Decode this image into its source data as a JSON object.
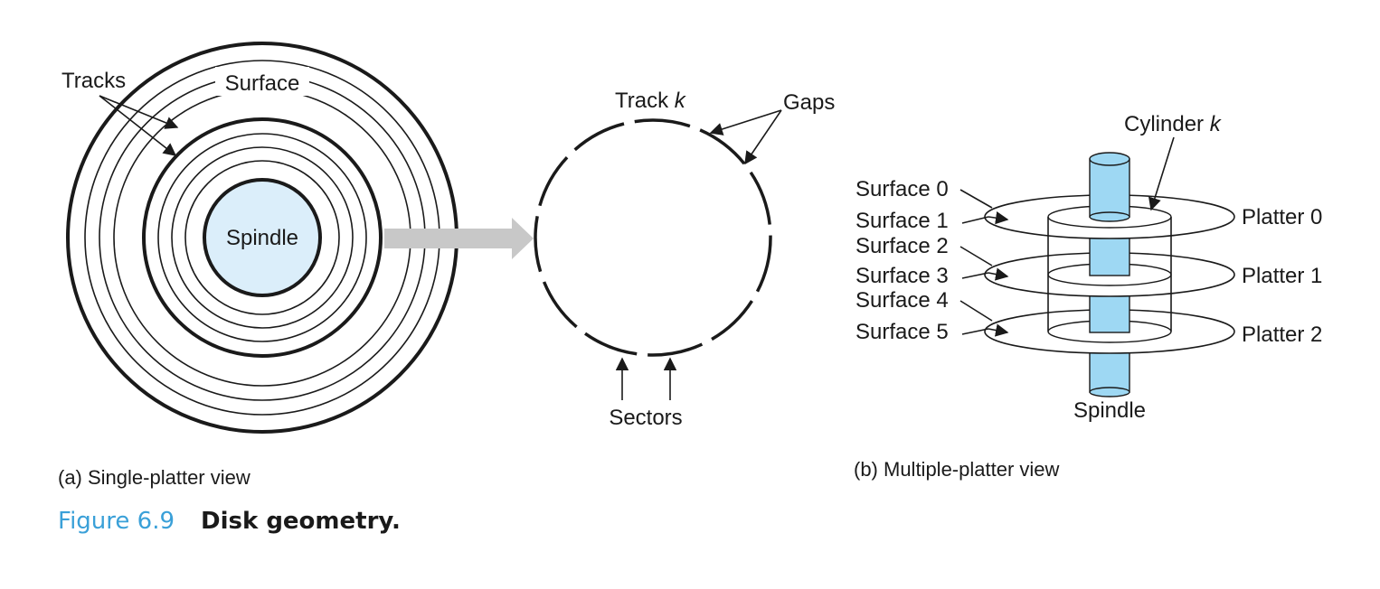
{
  "panel_a": {
    "label_tracks": "Tracks",
    "label_surface": "Surface",
    "label_spindle": "Spindle",
    "label_track": "Track",
    "label_track_var": "k",
    "label_gaps": "Gaps",
    "label_sectors": "Sectors",
    "caption": "(a) Single-platter view"
  },
  "panel_b": {
    "label_cylinder": "Cylinder",
    "label_cylinder_var": "k",
    "surfaces": [
      "Surface 0",
      "Surface 1",
      "Surface 2",
      "Surface 3",
      "Surface 4",
      "Surface 5"
    ],
    "platters": [
      "Platter 0",
      "Platter 1",
      "Platter 2"
    ],
    "label_spindle": "Spindle",
    "caption": "(b) Multiple-platter view"
  },
  "figure": {
    "number": "Figure 6.9",
    "title": "Disk geometry."
  },
  "colors": {
    "spindle_fill": "#dbeefa",
    "cylinder_fill": "#9ed8f3",
    "arrow_gray": "#c8c8c8",
    "caption_blue": "#3aa0d8"
  }
}
